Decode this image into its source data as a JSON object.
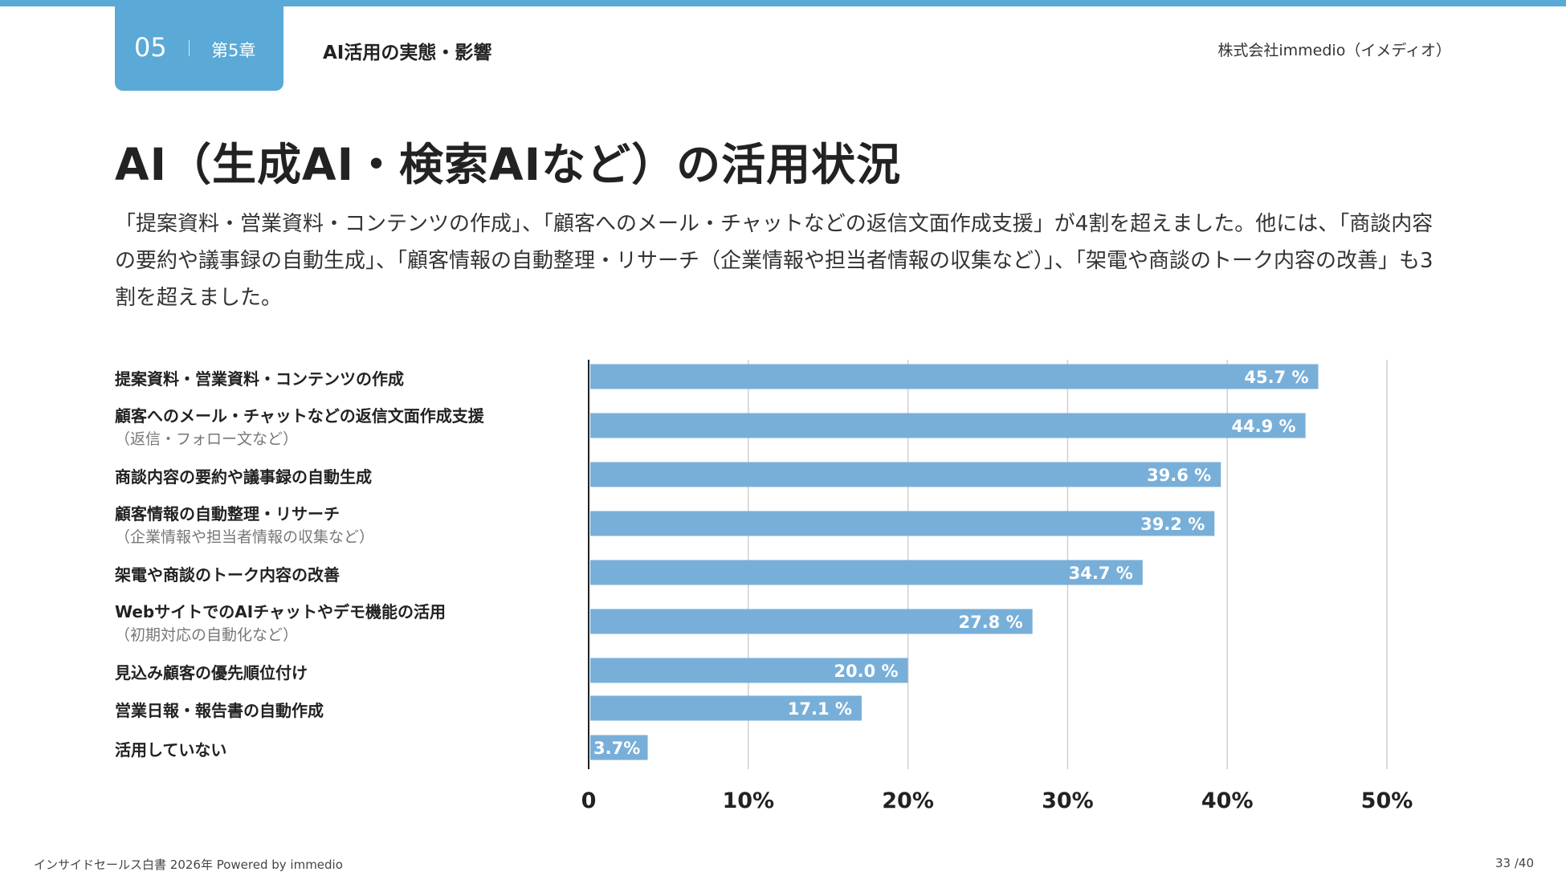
{
  "header": {
    "chapter_number": "05",
    "chapter_label": "第5章",
    "section_title": "AI活用の実態・影響",
    "company": "株式会社immedio（イメディオ）"
  },
  "title": "AI（生成AI・検索AIなど）の活用状況",
  "description": "「提案資料・営業資料・コンテンツの作成」、「顧客へのメール・チャットなどの返信文面作成支援」が4割を超えました。他には、「商談内容の要約や議事録の自動生成」、「顧客情報の自動整理・リサーチ（企業情報や担当者情報の収集など）」、「架電や商談のトーク内容の改善」も3割を超えました。",
  "chart_data": {
    "type": "bar",
    "orientation": "horizontal",
    "categories": [
      {
        "label": "提案資料・営業資料・コンテンツの作成",
        "sub": ""
      },
      {
        "label": "顧客へのメール・チャットなどの返信文面作成支援",
        "sub": "（返信・フォロー文など）"
      },
      {
        "label": "商談内容の要約や議事録の自動生成",
        "sub": ""
      },
      {
        "label": "顧客情報の自動整理・リサーチ",
        "sub": "（企業情報や担当者情報の収集など）"
      },
      {
        "label": "架電や商談のトーク内容の改善",
        "sub": ""
      },
      {
        "label": "WebサイトでのAIチャットやデモ機能の活用",
        "sub": "（初期対応の自動化など）"
      },
      {
        "label": "見込み顧客の優先順位付け",
        "sub": ""
      },
      {
        "label": "営業日報・報告書の自動作成",
        "sub": ""
      },
      {
        "label": "活用していない",
        "sub": ""
      }
    ],
    "values": [
      45.7,
      44.9,
      39.6,
      39.2,
      34.7,
      27.8,
      20.0,
      17.1,
      3.7
    ],
    "value_labels": [
      "45.7 %",
      "44.9 %",
      "39.6 %",
      "39.2 %",
      "34.7 %",
      "27.8 %",
      "20.0 %",
      "17.1 %",
      "3.7%"
    ],
    "xlim": [
      0,
      50
    ],
    "xticks": [
      "0",
      "10%",
      "20%",
      "30%",
      "40%",
      "50%"
    ],
    "grid": true,
    "bar_color": "#78afd9"
  },
  "footer": {
    "source": "インサイドセールス白書 2026年 Powered by immedio",
    "page": "33 /40"
  }
}
